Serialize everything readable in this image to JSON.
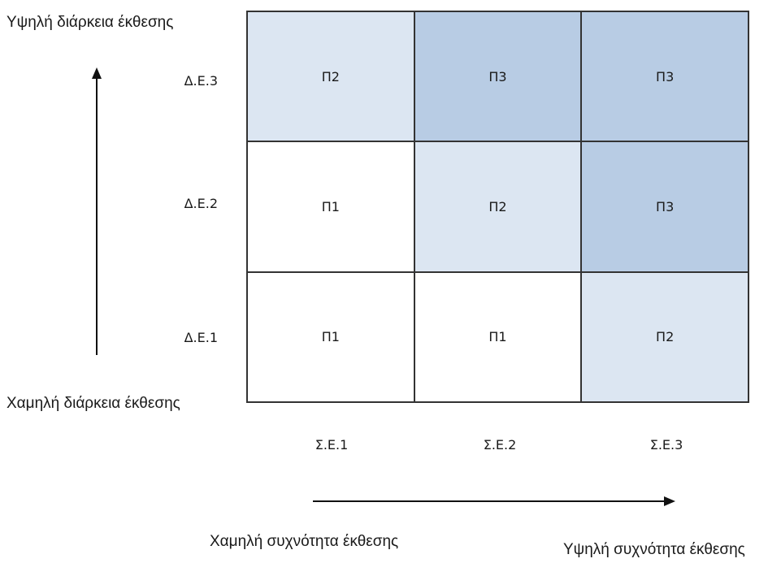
{
  "axes": {
    "y_high": "Υψηλή διάρκεια έκθεσης",
    "y_low": "Χαμηλή διάρκεια έκθεσης",
    "x_low": "Χαμηλή συχνότητα έκθεσης",
    "x_high": "Υψηλή συχνότητα έκθεσης"
  },
  "rows": [
    "Δ.Ε.3",
    "Δ.Ε.2",
    "Δ.Ε.1"
  ],
  "columns": [
    "Σ.Ε.1",
    "Σ.Ε.2",
    "Σ.Ε.3"
  ],
  "matrix": [
    [
      {
        "label": "Π2",
        "level": 2
      },
      {
        "label": "Π3",
        "level": 3
      },
      {
        "label": "Π3",
        "level": 3
      }
    ],
    [
      {
        "label": "Π1",
        "level": 1
      },
      {
        "label": "Π2",
        "level": 2
      },
      {
        "label": "Π3",
        "level": 3
      }
    ],
    [
      {
        "label": "Π1",
        "level": 1
      },
      {
        "label": "Π1",
        "level": 1
      },
      {
        "label": "Π2",
        "level": 2
      }
    ]
  ],
  "level_colors": {
    "1": "#ffffff",
    "2": "#dce6f2",
    "3": "#b8cce4"
  }
}
